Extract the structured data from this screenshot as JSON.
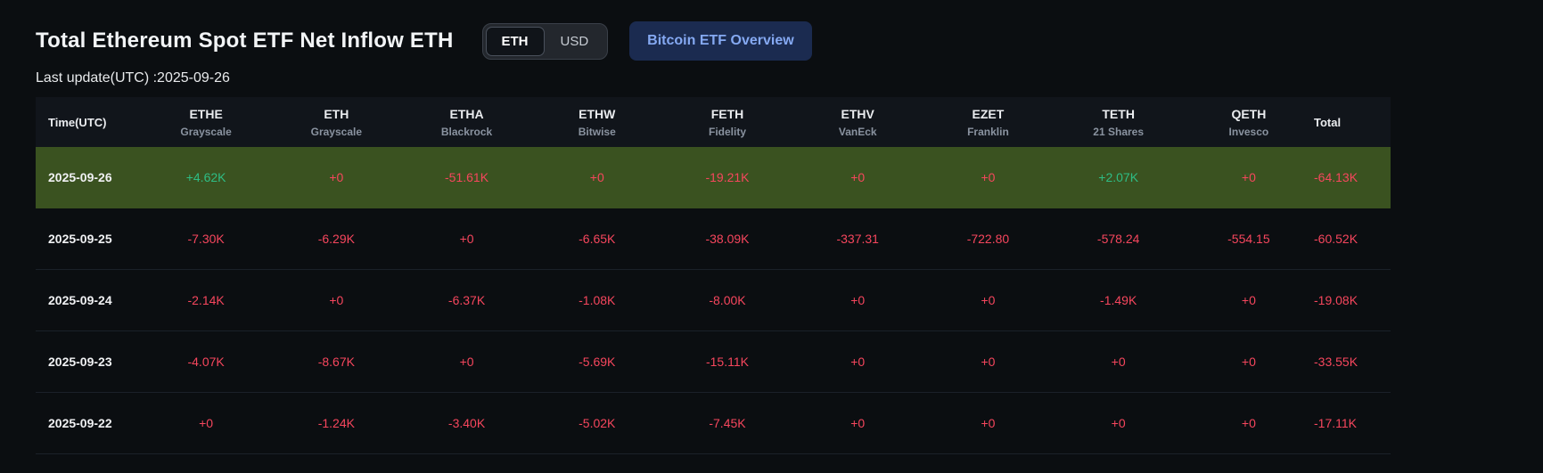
{
  "header": {
    "title": "Total Ethereum Spot ETF Net Inflow ETH",
    "last_update": "Last update(UTC) :2025-09-26",
    "toggle": {
      "options": [
        "ETH",
        "USD"
      ],
      "selected": "ETH"
    },
    "overview_button": "Bitcoin ETF Overview"
  },
  "colors": {
    "positive": "#2ebd85",
    "negative": "#f6465d",
    "highlight_row_bg": "#3a5220"
  },
  "table": {
    "time_header": "Time(UTC)",
    "total_header": "Total",
    "columns": [
      {
        "ticker": "ETHE",
        "issuer": "Grayscale"
      },
      {
        "ticker": "ETH",
        "issuer": "Grayscale"
      },
      {
        "ticker": "ETHA",
        "issuer": "Blackrock"
      },
      {
        "ticker": "ETHW",
        "issuer": "Bitwise"
      },
      {
        "ticker": "FETH",
        "issuer": "Fidelity"
      },
      {
        "ticker": "ETHV",
        "issuer": "VanEck"
      },
      {
        "ticker": "EZET",
        "issuer": "Franklin"
      },
      {
        "ticker": "TETH",
        "issuer": "21 Shares"
      },
      {
        "ticker": "QETH",
        "issuer": "Invesco"
      }
    ],
    "rows": [
      {
        "date": "2025-09-26",
        "highlighted": true,
        "values": [
          {
            "text": "+4.62K",
            "trend": "positive"
          },
          {
            "text": "+0",
            "trend": "negative"
          },
          {
            "text": "-51.61K",
            "trend": "negative"
          },
          {
            "text": "+0",
            "trend": "negative"
          },
          {
            "text": "-19.21K",
            "trend": "negative"
          },
          {
            "text": "+0",
            "trend": "negative"
          },
          {
            "text": "+0",
            "trend": "negative"
          },
          {
            "text": "+2.07K",
            "trend": "positive"
          },
          {
            "text": "+0",
            "trend": "negative"
          }
        ],
        "total": {
          "text": "-64.13K",
          "trend": "negative"
        }
      },
      {
        "date": "2025-09-25",
        "highlighted": false,
        "values": [
          {
            "text": "-7.30K",
            "trend": "negative"
          },
          {
            "text": "-6.29K",
            "trend": "negative"
          },
          {
            "text": "+0",
            "trend": "negative"
          },
          {
            "text": "-6.65K",
            "trend": "negative"
          },
          {
            "text": "-38.09K",
            "trend": "negative"
          },
          {
            "text": "-337.31",
            "trend": "negative"
          },
          {
            "text": "-722.80",
            "trend": "negative"
          },
          {
            "text": "-578.24",
            "trend": "negative"
          },
          {
            "text": "-554.15",
            "trend": "negative"
          }
        ],
        "total": {
          "text": "-60.52K",
          "trend": "negative"
        }
      },
      {
        "date": "2025-09-24",
        "highlighted": false,
        "values": [
          {
            "text": "-2.14K",
            "trend": "negative"
          },
          {
            "text": "+0",
            "trend": "negative"
          },
          {
            "text": "-6.37K",
            "trend": "negative"
          },
          {
            "text": "-1.08K",
            "trend": "negative"
          },
          {
            "text": "-8.00K",
            "trend": "negative"
          },
          {
            "text": "+0",
            "trend": "negative"
          },
          {
            "text": "+0",
            "trend": "negative"
          },
          {
            "text": "-1.49K",
            "trend": "negative"
          },
          {
            "text": "+0",
            "trend": "negative"
          }
        ],
        "total": {
          "text": "-19.08K",
          "trend": "negative"
        }
      },
      {
        "date": "2025-09-23",
        "highlighted": false,
        "values": [
          {
            "text": "-4.07K",
            "trend": "negative"
          },
          {
            "text": "-8.67K",
            "trend": "negative"
          },
          {
            "text": "+0",
            "trend": "negative"
          },
          {
            "text": "-5.69K",
            "trend": "negative"
          },
          {
            "text": "-15.11K",
            "trend": "negative"
          },
          {
            "text": "+0",
            "trend": "negative"
          },
          {
            "text": "+0",
            "trend": "negative"
          },
          {
            "text": "+0",
            "trend": "negative"
          },
          {
            "text": "+0",
            "trend": "negative"
          }
        ],
        "total": {
          "text": "-33.55K",
          "trend": "negative"
        }
      },
      {
        "date": "2025-09-22",
        "highlighted": false,
        "values": [
          {
            "text": "+0",
            "trend": "negative"
          },
          {
            "text": "-1.24K",
            "trend": "negative"
          },
          {
            "text": "-3.40K",
            "trend": "negative"
          },
          {
            "text": "-5.02K",
            "trend": "negative"
          },
          {
            "text": "-7.45K",
            "trend": "negative"
          },
          {
            "text": "+0",
            "trend": "negative"
          },
          {
            "text": "+0",
            "trend": "negative"
          },
          {
            "text": "+0",
            "trend": "negative"
          },
          {
            "text": "+0",
            "trend": "negative"
          }
        ],
        "total": {
          "text": "-17.11K",
          "trend": "negative"
        }
      }
    ]
  }
}
